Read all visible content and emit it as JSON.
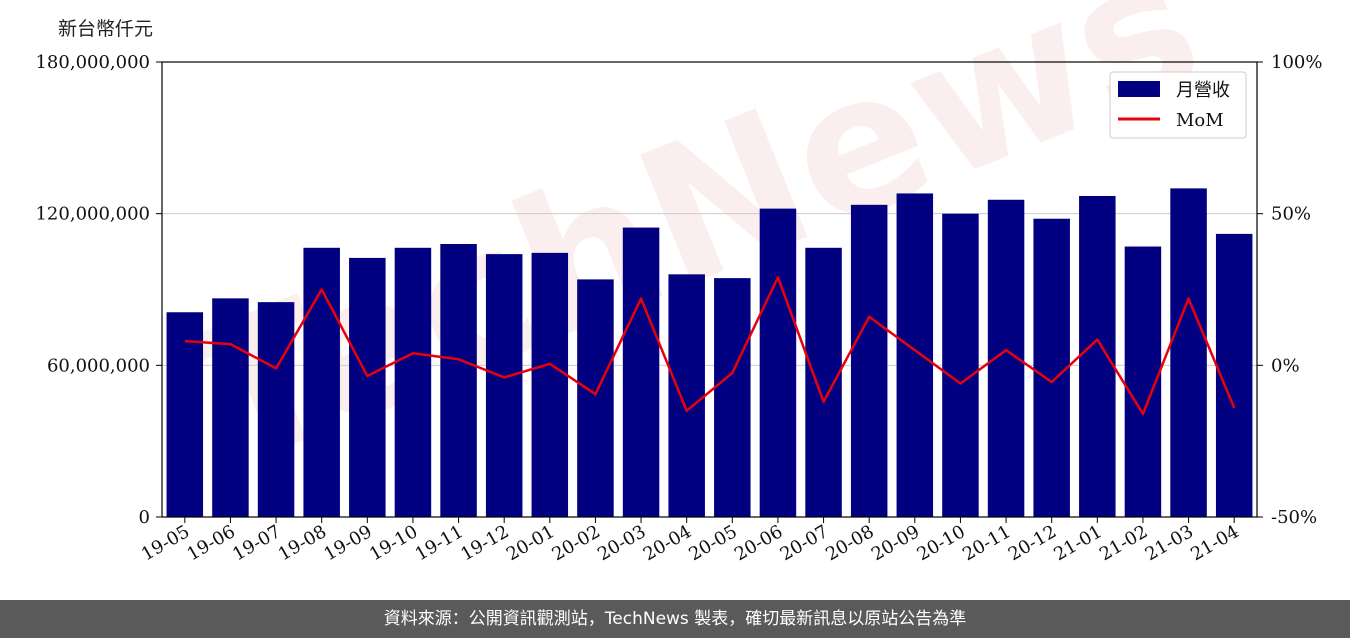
{
  "ylabel": "新台幣仟元",
  "footer": "資料來源：公開資訊觀測站，TechNews 製表，確切最新訊息以原站公告為準",
  "watermark": "TechNews",
  "chart_data": {
    "type": "bar",
    "categories": [
      "19-05",
      "19-06",
      "19-07",
      "19-08",
      "19-09",
      "19-10",
      "19-11",
      "19-12",
      "20-01",
      "20-02",
      "20-03",
      "20-04",
      "20-05",
      "20-06",
      "20-07",
      "20-08",
      "20-09",
      "20-10",
      "20-11",
      "20-12",
      "21-01",
      "21-02",
      "21-03",
      "21-04"
    ],
    "series": [
      {
        "name": "月營收",
        "axis": "left",
        "type": "bar",
        "color": "#000080",
        "values": [
          81000000,
          86500000,
          85000000,
          106500000,
          102500000,
          106500000,
          108000000,
          104000000,
          104500000,
          94000000,
          114500000,
          96000000,
          94500000,
          122000000,
          106500000,
          123500000,
          128000000,
          120000000,
          125500000,
          118000000,
          127000000,
          107000000,
          130000000,
          112000000
        ]
      },
      {
        "name": "MoM",
        "axis": "right",
        "type": "line",
        "color": "#e8000b",
        "values": [
          8,
          7,
          -1,
          25,
          -3.5,
          4,
          2,
          -4,
          0.5,
          -9.5,
          22,
          -15,
          -2.5,
          29,
          -12,
          16,
          5,
          -6,
          5,
          -5.5,
          8.5,
          -16,
          22,
          -14
        ]
      }
    ],
    "ylim_left": [
      0,
      180000000
    ],
    "yticks_left": [
      0,
      60000000,
      120000000,
      180000000
    ],
    "yticklabels_left": [
      "0",
      "60,000,000",
      "120,000,000",
      "180,000,000"
    ],
    "ylim_right": [
      -50,
      100
    ],
    "yticks_right": [
      -50,
      0,
      50,
      100
    ],
    "yticklabels_right": [
      "-50%",
      "0%",
      "50%",
      "100%"
    ],
    "grid": "horizontal",
    "legend_position": "top-right"
  }
}
